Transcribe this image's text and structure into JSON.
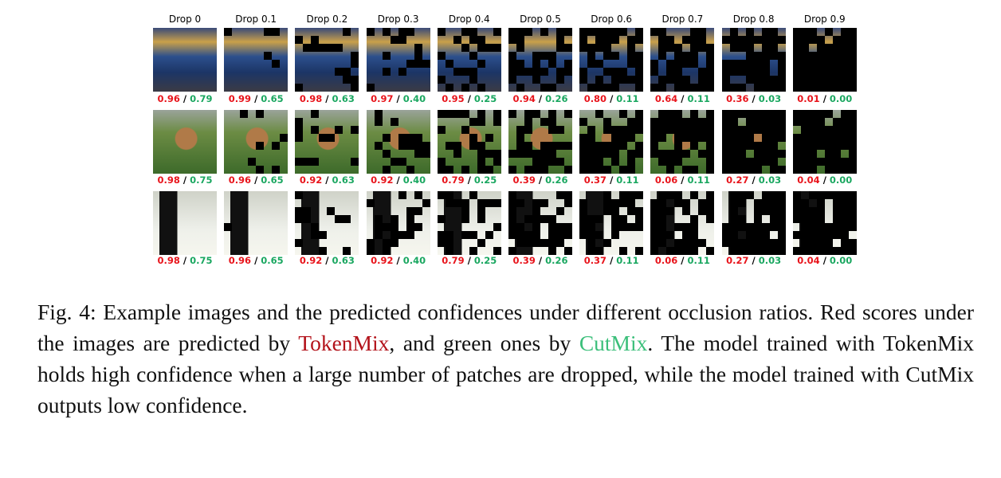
{
  "figure": {
    "headers": [
      "Drop 0",
      "Drop 0.1",
      "Drop 0.2",
      "Drop 0.3",
      "Drop 0.4",
      "Drop 0.5",
      "Drop 0.6",
      "Drop 0.7",
      "Drop 0.8",
      "Drop 0.9"
    ],
    "separator": "/",
    "rows": [
      {
        "tokenmix": [
          "0.96",
          "0.99",
          "0.98",
          "0.97",
          "0.95",
          "0.94",
          "0.80",
          "0.64",
          "0.36",
          "0.01"
        ],
        "cutmix": [
          "0.79",
          "0.65",
          "0.63",
          "0.40",
          "0.25",
          "0.26",
          "0.11",
          "0.11",
          "0.03",
          "0.00"
        ]
      },
      {
        "tokenmix": [
          "0.98",
          "0.96",
          "0.92",
          "0.92",
          "0.79",
          "0.39",
          "0.37",
          "0.06",
          "0.27",
          "0.04"
        ],
        "cutmix": [
          "0.75",
          "0.65",
          "0.63",
          "0.40",
          "0.25",
          "0.26",
          "0.11",
          "0.11",
          "0.03",
          "0.00"
        ]
      },
      {
        "tokenmix": [
          "0.98",
          "0.96",
          "0.92",
          "0.92",
          "0.79",
          "0.39",
          "0.37",
          "0.06",
          "0.27",
          "0.04"
        ],
        "cutmix": [
          "0.75",
          "0.65",
          "0.63",
          "0.40",
          "0.25",
          "0.26",
          "0.11",
          "0.11",
          "0.03",
          "0.00"
        ]
      }
    ]
  },
  "caption": {
    "label": "Fig. 4:",
    "text_1": "Example images and the predicted confidences under different occlusion ratios. Red scores under the images are predicted by",
    "tokenmix": "TokenMix",
    "text_2": ", and green ones by",
    "cutmix": "CutMix",
    "text_3": ". The model trained with TokenMix holds high confidence when a large number of patches are dropped, while the model trained with CutMix outputs low confidence."
  }
}
